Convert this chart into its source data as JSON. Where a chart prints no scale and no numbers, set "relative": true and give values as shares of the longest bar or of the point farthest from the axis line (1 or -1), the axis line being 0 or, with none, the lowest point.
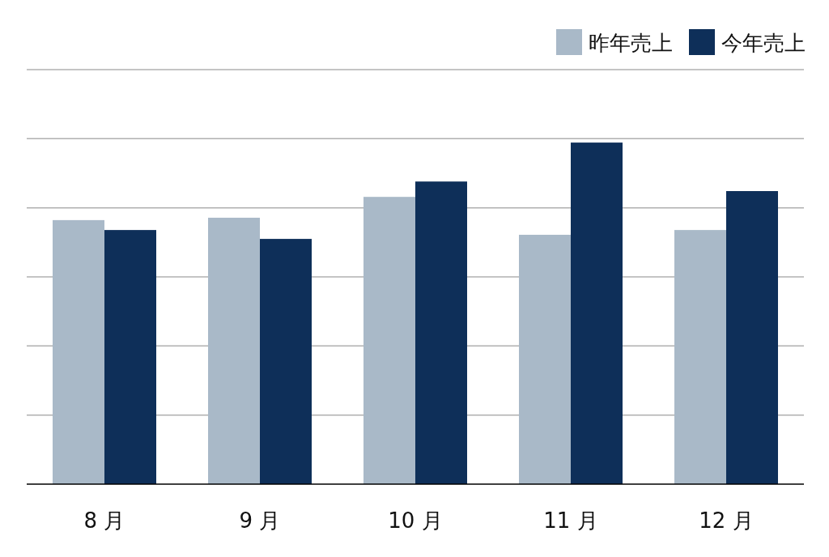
{
  "chart_data": {
    "type": "bar",
    "relative": true,
    "categories": [
      "8 月",
      "9 月",
      "10 月",
      "11 月",
      "12 月"
    ],
    "series": [
      {
        "name": "昨年売上",
        "color": "#a9b9c8",
        "values": [
          0.773,
          0.78,
          0.841,
          0.73,
          0.744
        ]
      },
      {
        "name": "今年売上",
        "color": "#0e2f59",
        "values": [
          0.744,
          0.718,
          0.886,
          1,
          0.858
        ]
      }
    ],
    "grid": "y",
    "legend": "top right"
  }
}
